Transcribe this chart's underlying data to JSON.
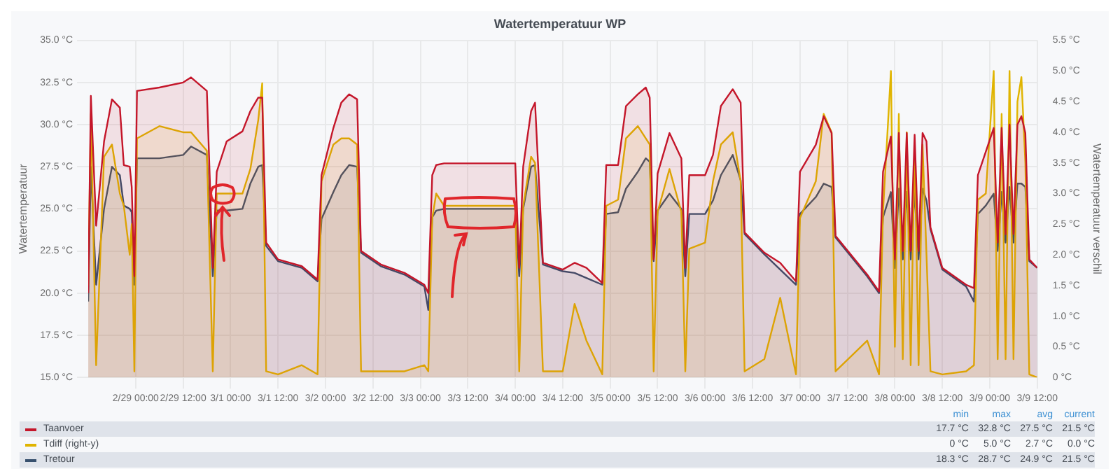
{
  "chart_data": {
    "type": "area",
    "title": "Watertemperatuur WP",
    "ylabel": "Watertemperatuur",
    "y2label": "Watertemperatuur verschil",
    "x": [
      "--02-28T12:00",
      "--02-28T12:40",
      "--02-28T14:00",
      "--02-28T16:00",
      "--02-28T18:00",
      "--02-28T20:00",
      "--02-28T21:00",
      "--02-28T22:30",
      "--02-28T23:00",
      "--02-28T23:40",
      "--02-29T00:20",
      "--02-29T06:00",
      "--02-29T12:00",
      "--02-29T14:00",
      "--02-29T18:00",
      "--02-29T19:30",
      "--02-29T20:30",
      "--02-29T23:00",
      "--03-01T03:00",
      "--03-01T05:00",
      "--03-01T07:00",
      "--03-01T08:00",
      "--03-01T09:00",
      "--03-01T12:00",
      "--03-01T18:00",
      "--03-01T22:00",
      "--03-01T23:00",
      "--03-02T02:00",
      "--03-02T04:00",
      "--03-02T06:00",
      "--03-02T08:00",
      "--03-02T09:00",
      "--03-02T14:00",
      "--03-02T20:00",
      "--03-03T01:00",
      "--03-03T02:00",
      "--03-03T03:00",
      "--03-03T04:00",
      "--03-03T06:00",
      "--03-03T12:00",
      "--03-04T00:00",
      "--03-04T01:00",
      "--03-04T02:00",
      "--03-04T04:00",
      "--03-04T05:00",
      "--03-04T07:00",
      "--03-04T12:00",
      "--03-04T15:00",
      "--03-04T18:00",
      "--03-04T22:00",
      "--03-04T23:00",
      "--03-05T02:00",
      "--03-05T04:00",
      "--03-05T07:00",
      "--03-05T09:00",
      "--03-05T10:00",
      "--03-05T11:00",
      "--03-05T12:00",
      "--03-05T15:00",
      "--03-05T18:00",
      "--03-05T19:00",
      "--03-05T20:00",
      "--03-06T00:00",
      "--03-06T02:00",
      "--03-06T04:00",
      "--03-06T07:00",
      "--03-06T09:00",
      "--03-06T10:00",
      "--03-06T15:00",
      "--03-06T19:00",
      "--03-06T23:00",
      "--03-07T00:00",
      "--03-07T04:00",
      "--03-07T06:00",
      "--03-07T08:00",
      "--03-07T09:00",
      "--03-07T17:00",
      "--03-07T20:00",
      "--03-07T21:00",
      "--03-07T23:00",
      "--03-08T00:00",
      "--03-08T01:00",
      "--03-08T02:00",
      "--03-08T03:00",
      "--03-08T04:00",
      "--03-08T05:00",
      "--03-08T06:00",
      "--03-08T07:00",
      "--03-08T08:00",
      "--03-08T09:00",
      "--03-08T12:00",
      "--03-08T18:00",
      "--03-08T20:00",
      "--03-08T21:00",
      "--03-08T23:00",
      "--03-09T01:00",
      "--03-09T02:00",
      "--03-09T03:00",
      "--03-09T04:00",
      "--03-09T05:00",
      "--03-09T06:00",
      "--03-09T07:00",
      "--03-09T08:00",
      "--03-09T09:00",
      "--03-09T10:00",
      "--03-09T12:00"
    ],
    "series": [
      {
        "name": "Taanvoer",
        "color": "#c4162a",
        "values": [
          20.0,
          31.7,
          24.0,
          29.0,
          31.5,
          31.0,
          27.6,
          27.5,
          26.3,
          21.0,
          32.0,
          32.2,
          32.5,
          32.8,
          32.0,
          21.5,
          27.2,
          29.0,
          29.6,
          30.8,
          31.6,
          31.6,
          23.0,
          22.0,
          21.6,
          20.8,
          27.0,
          29.8,
          31.3,
          31.8,
          31.5,
          22.5,
          21.7,
          21.2,
          20.5,
          20.0,
          27.0,
          27.6,
          27.7,
          27.7,
          27.7,
          21.5,
          27.5,
          30.8,
          31.3,
          21.8,
          21.4,
          21.8,
          21.5,
          20.6,
          27.6,
          27.6,
          31.1,
          31.8,
          32.2,
          31.6,
          22.0,
          27.1,
          29.5,
          28.0,
          21.5,
          27.0,
          27.0,
          28.2,
          31.1,
          32.1,
          31.3,
          23.6,
          22.4,
          21.8,
          20.7,
          27.2,
          28.8,
          30.5,
          29.5,
          23.4,
          21.1,
          20.1,
          27.2,
          29.3,
          22.0,
          29.5,
          22.5,
          29.5,
          22.5,
          29.4,
          22.5,
          29.5,
          29.0,
          23.9,
          21.5,
          20.5,
          20.3,
          27.0,
          28.4,
          29.8,
          23.0,
          29.8,
          23.5,
          30.0,
          23.5,
          30.0,
          30.5,
          29.5,
          22.0,
          21.5
        ]
      },
      {
        "name": "Tdiff (right-y)",
        "color": "#e0b400",
        "axis": "y2",
        "values": [
          1.5,
          4.3,
          0.2,
          3.6,
          3.8,
          3.0,
          2.8,
          2.0,
          2.5,
          0.1,
          3.9,
          4.1,
          4.0,
          4.0,
          3.7,
          0.1,
          3.0,
          3.0,
          3.0,
          3.4,
          4.2,
          4.8,
          0.1,
          0.05,
          0.2,
          0.05,
          3.2,
          3.8,
          3.9,
          3.9,
          3.8,
          0.1,
          0.1,
          0.1,
          0.2,
          0.1,
          2.6,
          3.0,
          2.8,
          2.8,
          2.8,
          0.1,
          2.8,
          3.6,
          3.5,
          0.1,
          0.1,
          1.2,
          0.6,
          0.05,
          2.8,
          2.9,
          3.9,
          4.1,
          3.9,
          3.8,
          0.1,
          2.7,
          3.4,
          2.7,
          0.1,
          2.1,
          2.2,
          3.2,
          3.8,
          4.0,
          3.2,
          0.1,
          0.3,
          1.3,
          0.05,
          2.6,
          3.2,
          4.3,
          4.0,
          0.1,
          0.6,
          0.05,
          2.7,
          5.0,
          0.5,
          4.3,
          0.3,
          4.0,
          0.2,
          3.8,
          0.2,
          3.8,
          2.0,
          0.1,
          0.05,
          0.1,
          0.2,
          2.9,
          3.0,
          5.0,
          0.3,
          4.3,
          0.3,
          5.0,
          0.3,
          4.5,
          4.9,
          3.5,
          0.05,
          0.0
        ]
      },
      {
        "name": "Tretour",
        "color": "#37506e",
        "values": [
          19.5,
          27.5,
          20.5,
          25.0,
          27.5,
          27.0,
          25.2,
          25.0,
          24.8,
          20.5,
          28.0,
          28.0,
          28.2,
          28.7,
          28.2,
          21.0,
          24.9,
          24.9,
          25.0,
          26.5,
          27.5,
          27.6,
          22.8,
          21.9,
          21.5,
          20.7,
          24.4,
          26.0,
          27.0,
          27.6,
          27.5,
          22.4,
          21.6,
          21.1,
          20.4,
          19.0,
          24.5,
          24.9,
          25.0,
          25.0,
          25.0,
          21.0,
          25.0,
          27.5,
          27.6,
          21.7,
          21.3,
          21.2,
          20.9,
          20.5,
          24.7,
          24.8,
          26.2,
          27.2,
          28.0,
          27.8,
          21.9,
          24.9,
          25.9,
          25.0,
          21.0,
          24.7,
          24.7,
          25.5,
          27.0,
          28.2,
          26.7,
          23.5,
          22.3,
          21.4,
          20.5,
          24.7,
          25.7,
          26.5,
          26.3,
          23.3,
          21.0,
          20.0,
          24.5,
          26.0,
          21.5,
          26.2,
          22.0,
          26.0,
          22.0,
          26.0,
          22.0,
          26.2,
          25.5,
          23.8,
          21.4,
          20.4,
          19.5,
          24.7,
          25.2,
          25.9,
          22.5,
          26.0,
          23.0,
          26.3,
          23.0,
          26.5,
          26.5,
          26.3,
          21.9,
          21.5
        ]
      }
    ],
    "xlim": [
      "--02-28T12:00",
      "--03-09T12:00"
    ],
    "xticks": [
      {
        "value": "--02-29T00:00",
        "label": "2/29 00:00"
      },
      {
        "value": "--02-29T12:00",
        "label": "2/29 12:00"
      },
      {
        "value": "--03-01T00:00",
        "label": "3/1 00:00"
      },
      {
        "value": "--03-01T12:00",
        "label": "3/1 12:00"
      },
      {
        "value": "--03-02T00:00",
        "label": "3/2 00:00"
      },
      {
        "value": "--03-02T12:00",
        "label": "3/2 12:00"
      },
      {
        "value": "--03-03T00:00",
        "label": "3/3 00:00"
      },
      {
        "value": "--03-03T12:00",
        "label": "3/3 12:00"
      },
      {
        "value": "--03-04T00:00",
        "label": "3/4 00:00"
      },
      {
        "value": "--03-04T12:00",
        "label": "3/4 12:00"
      },
      {
        "value": "--03-05T00:00",
        "label": "3/5 00:00"
      },
      {
        "value": "--03-05T12:00",
        "label": "3/5 12:00"
      },
      {
        "value": "--03-06T00:00",
        "label": "3/6 00:00"
      },
      {
        "value": "--03-06T12:00",
        "label": "3/6 12:00"
      },
      {
        "value": "--03-07T00:00",
        "label": "3/7 00:00"
      },
      {
        "value": "--03-07T12:00",
        "label": "3/7 12:00"
      },
      {
        "value": "--03-08T00:00",
        "label": "3/8 00:00"
      },
      {
        "value": "--03-08T12:00",
        "label": "3/8 12:00"
      },
      {
        "value": "--03-09T00:00",
        "label": "3/9 00:00"
      },
      {
        "value": "--03-09T12:00",
        "label": "3/9 12:00"
      }
    ],
    "ylim": [
      15,
      35
    ],
    "yticks": [
      {
        "value": 15,
        "label": "15.0 °C"
      },
      {
        "value": 17.5,
        "label": "17.5 °C"
      },
      {
        "value": 20,
        "label": "20.0 °C"
      },
      {
        "value": 22.5,
        "label": "22.5 °C"
      },
      {
        "value": 25,
        "label": "25.0 °C"
      },
      {
        "value": 27.5,
        "label": "27.5 °C"
      },
      {
        "value": 30,
        "label": "30.0 °C"
      },
      {
        "value": 32.5,
        "label": "32.5 °C"
      },
      {
        "value": 35,
        "label": "35.0 °C"
      }
    ],
    "y2lim": [
      0,
      5.5
    ],
    "y2ticks": [
      {
        "value": 0,
        "label": "0 °C"
      },
      {
        "value": 0.5,
        "label": "0.5 °C"
      },
      {
        "value": 1,
        "label": "1.0 °C"
      },
      {
        "value": 1.5,
        "label": "1.5 °C"
      },
      {
        "value": 2,
        "label": "2.0 °C"
      },
      {
        "value": 2.5,
        "label": "2.5 °C"
      },
      {
        "value": 3,
        "label": "3.0 °C"
      },
      {
        "value": 3.5,
        "label": "3.5 °C"
      },
      {
        "value": 4,
        "label": "4.0 °C"
      },
      {
        "value": 4.5,
        "label": "4.5 °C"
      },
      {
        "value": 5,
        "label": "5.0 °C"
      },
      {
        "value": 5.5,
        "label": "5.5 °C"
      }
    ],
    "grid": true,
    "legend": "bottom",
    "marker": "none",
    "annotations": [
      "min",
      "max",
      "avg",
      "current",
      "17.7 °C",
      "32.8 °C",
      "27.5 °C",
      "21.5 °C",
      "0 °C",
      "5.0 °C",
      "2.7 °C",
      "0.0 °C",
      "18.3 °C",
      "28.7 °C",
      "24.9 °C",
      "21.5 °C"
    ]
  }
}
